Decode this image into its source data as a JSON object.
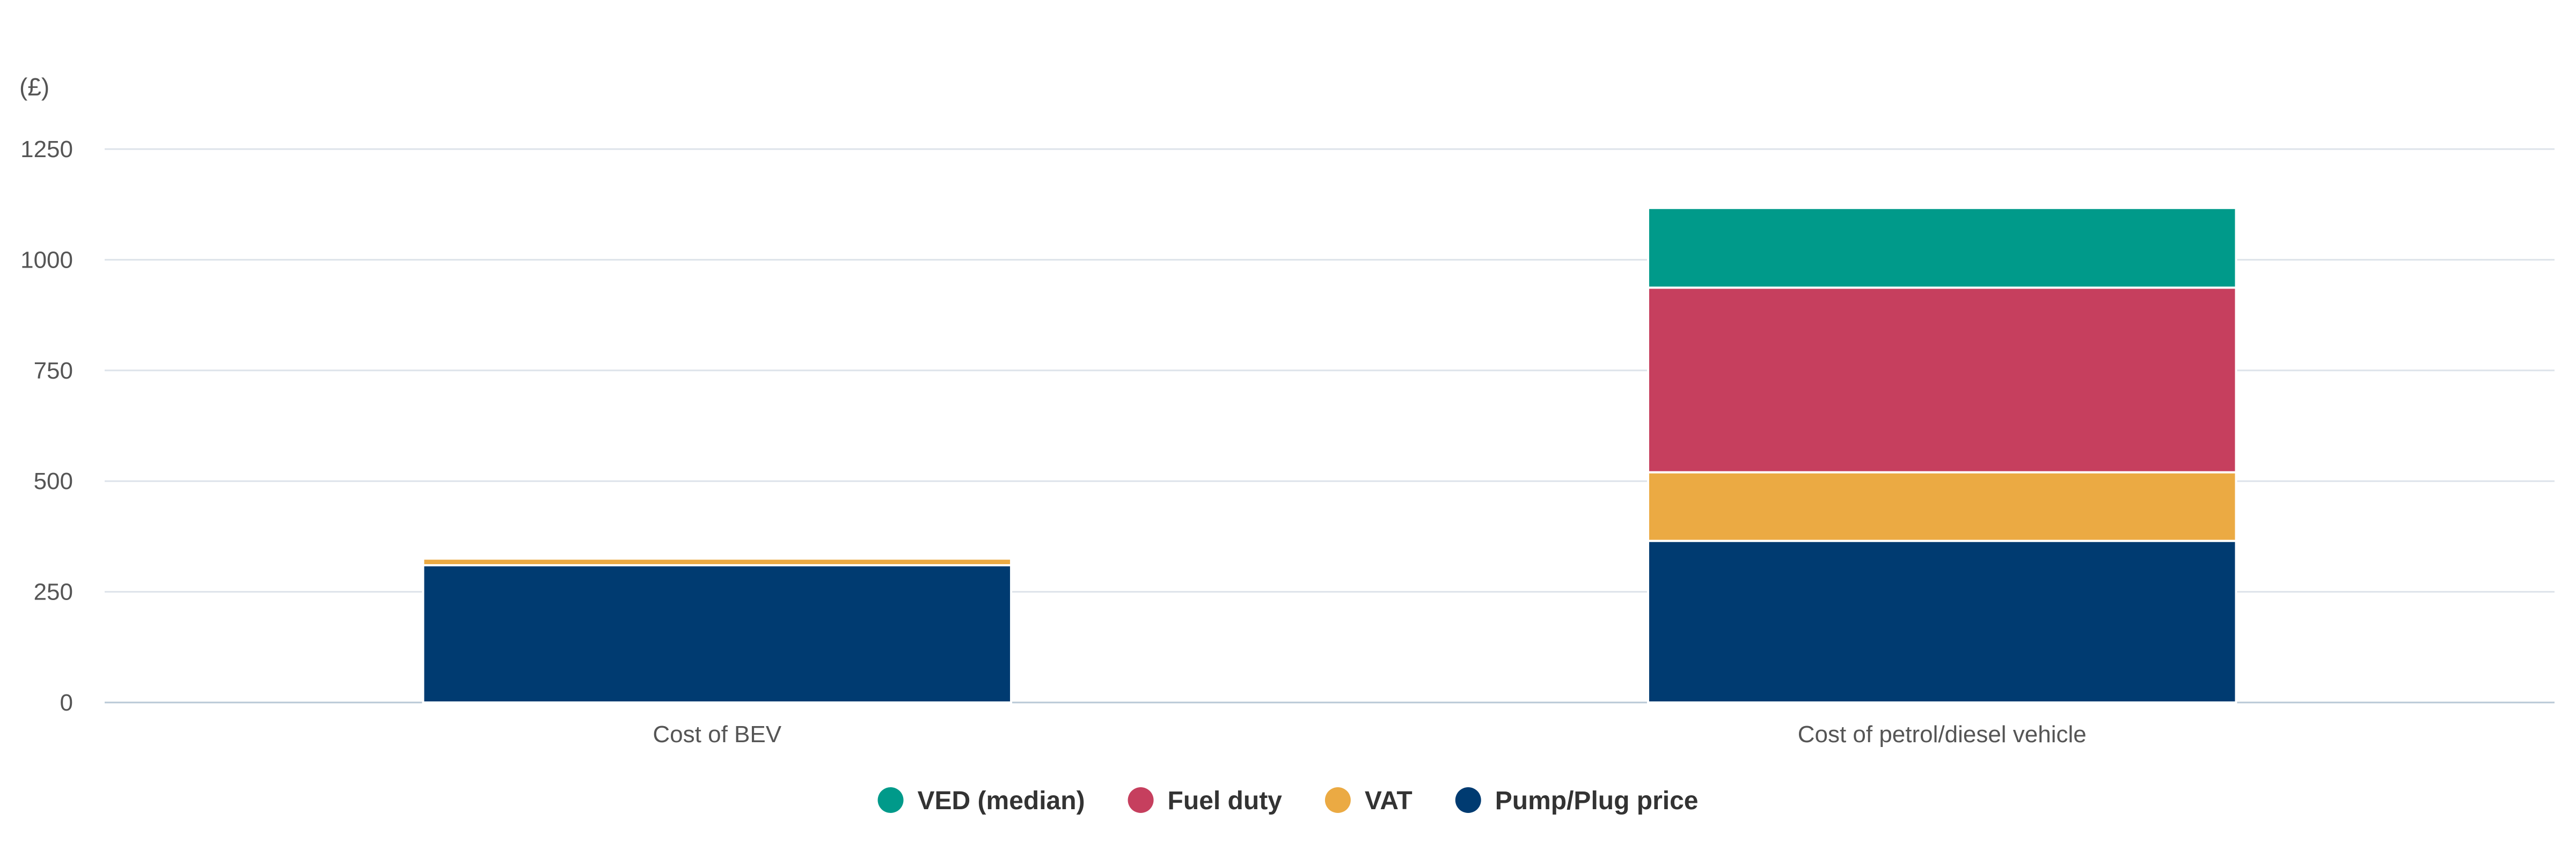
{
  "chart_data": {
    "type": "bar",
    "stacked": true,
    "unit_label": "(£)",
    "title": "",
    "xlabel": "",
    "ylabel": "",
    "categories": [
      "Cost of BEV",
      "Cost of petrol/diesel vehicle"
    ],
    "ylim": [
      0,
      1250
    ],
    "yticks": [
      0,
      250,
      500,
      750,
      1000,
      1250
    ],
    "grid": true,
    "legend_position": "bottom-center",
    "series": [
      {
        "name": "Pump/Plug price",
        "color": "#003b71",
        "values": [
          310,
          365
        ]
      },
      {
        "name": "VAT",
        "color": "#ebaa43",
        "values": [
          15,
          155
        ]
      },
      {
        "name": "Fuel duty",
        "color": "#c63f5e",
        "values": [
          0,
          417
        ]
      },
      {
        "name": "VED (median)",
        "color": "#009a8a",
        "values": [
          0,
          180
        ]
      }
    ],
    "legend_order": [
      "VED (median)",
      "Fuel duty",
      "VAT",
      "Pump/Plug price"
    ]
  }
}
